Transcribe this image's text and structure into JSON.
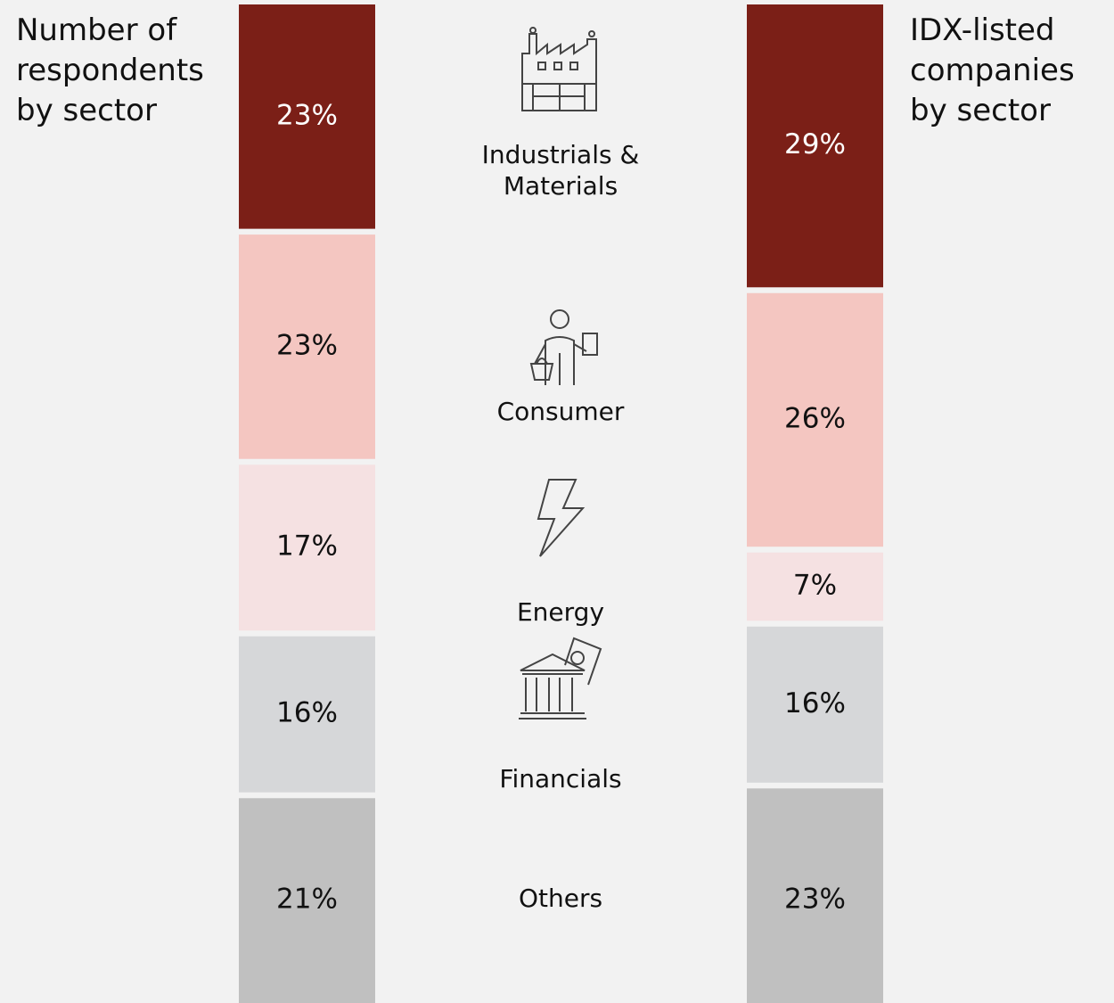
{
  "chart_data": {
    "type": "stacked_bar",
    "categories": [
      "Number of respondents by sector",
      "IDX-listed companies by sector"
    ],
    "series": [
      {
        "name": "Industrials & Materials",
        "color": "#7b1f17",
        "values": [
          23,
          29
        ],
        "value_labels": [
          "23%",
          "29%"
        ]
      },
      {
        "name": "Consumer",
        "color": "#f4c6c1",
        "values": [
          23,
          26
        ],
        "value_labels": [
          "23%",
          "26%"
        ]
      },
      {
        "name": "Energy",
        "color": "#f5e1e2",
        "values": [
          17,
          7
        ],
        "value_labels": [
          "17%",
          "7%"
        ]
      },
      {
        "name": "Financials",
        "color": "#d6d7d9",
        "values": [
          16,
          16
        ],
        "value_labels": [
          "16%",
          "16%"
        ]
      },
      {
        "name": "Others",
        "color": "#c0c0c0",
        "values": [
          21,
          23
        ],
        "value_labels": [
          "21%",
          "23%"
        ]
      }
    ],
    "ylim": [
      0,
      100
    ]
  }
}
